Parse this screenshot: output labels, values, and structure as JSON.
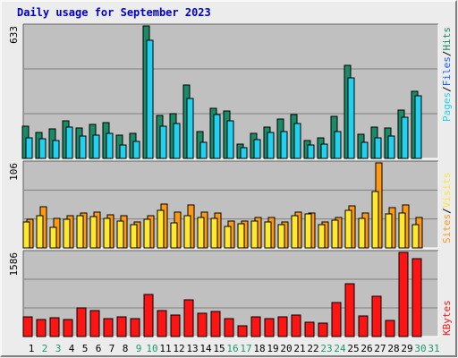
{
  "title": "Daily usage for September 2023",
  "colors": {
    "hits": "#1a8a67",
    "files": "#22d0f0",
    "pages": "#22d0f0",
    "visits": "#ff9914",
    "sites": "#ffe830",
    "kbytes": "#ff1414",
    "weekend_day": "#1a9a6a",
    "weekday": "#000000",
    "label_slash": "#000000",
    "hits_label": "#1a8a67",
    "files_label": "#1a60ff",
    "pages_label": "#22d0f0",
    "visits_label": "#ff9914",
    "sites_label": "#ffe830",
    "kbytes_label": "#ff1414",
    "panel_bg": "#c0c0c0"
  },
  "chart_data": [
    {
      "type": "bar",
      "name": "hits-files-pages",
      "categories": [
        "1",
        "2",
        "3",
        "4",
        "5",
        "6",
        "7",
        "8",
        "9",
        "10",
        "11",
        "12",
        "13",
        "14",
        "15",
        "16",
        "17",
        "18",
        "19",
        "20",
        "21",
        "22",
        "23",
        "24",
        "25",
        "26",
        "27",
        "28",
        "29",
        "30",
        "31"
      ],
      "max_label": "633",
      "ylim": [
        0,
        633
      ],
      "legend": [
        "Pages",
        "/",
        "Files",
        "/",
        "Hits"
      ],
      "series": [
        {
          "name": "Hits",
          "values": [
            155,
            123,
            143,
            180,
            145,
            163,
            172,
            112,
            118,
            633,
            205,
            215,
            350,
            130,
            240,
            225,
            70,
            120,
            150,
            190,
            210,
            85,
            100,
            200,
            445,
            115,
            150,
            145,
            230,
            320,
            0
          ]
        },
        {
          "name": "Files",
          "values": [
            100,
            95,
            85,
            150,
            108,
            110,
            120,
            65,
            80,
            565,
            155,
            168,
            287,
            75,
            210,
            180,
            50,
            90,
            125,
            130,
            165,
            65,
            70,
            130,
            385,
            75,
            100,
            105,
            195,
            300,
            0
          ]
        },
        {
          "name": "Pages",
          "values": [
            0,
            0,
            0,
            0,
            0,
            0,
            0,
            0,
            0,
            0,
            0,
            0,
            0,
            0,
            0,
            0,
            0,
            0,
            0,
            0,
            0,
            0,
            0,
            0,
            0,
            0,
            0,
            0,
            0,
            0,
            0
          ]
        }
      ]
    },
    {
      "type": "bar",
      "name": "visits-sites",
      "categories": [
        "1",
        "2",
        "3",
        "4",
        "5",
        "6",
        "7",
        "8",
        "9",
        "10",
        "11",
        "12",
        "13",
        "14",
        "15",
        "16",
        "17",
        "18",
        "19",
        "20",
        "21",
        "22",
        "23",
        "24",
        "25",
        "26",
        "27",
        "28",
        "29",
        "30",
        "31"
      ],
      "max_label": "106",
      "ylim": [
        0,
        106
      ],
      "legend": [
        "Sites",
        "/",
        "Visits"
      ],
      "series": [
        {
          "name": "Visits",
          "values": [
            36,
            51,
            37,
            40,
            44,
            45,
            41,
            40,
            32,
            40,
            55,
            45,
            53,
            45,
            43,
            33,
            34,
            38,
            38,
            32,
            45,
            44,
            32,
            38,
            52,
            44,
            106,
            50,
            53,
            38,
            0
          ]
        },
        {
          "name": "Sites",
          "values": [
            32,
            40,
            26,
            36,
            40,
            39,
            37,
            34,
            29,
            36,
            47,
            31,
            40,
            38,
            37,
            27,
            30,
            34,
            32,
            29,
            40,
            42,
            29,
            35,
            47,
            37,
            70,
            42,
            44,
            29,
            0
          ]
        }
      ]
    },
    {
      "type": "bar",
      "name": "kbytes",
      "categories": [
        "1",
        "2",
        "3",
        "4",
        "5",
        "6",
        "7",
        "8",
        "9",
        "10",
        "11",
        "12",
        "13",
        "14",
        "15",
        "16",
        "17",
        "18",
        "19",
        "20",
        "21",
        "22",
        "23",
        "24",
        "25",
        "26",
        "27",
        "28",
        "29",
        "30",
        "31"
      ],
      "max_label": "1586",
      "ylim": [
        0,
        1586
      ],
      "legend": [
        "KBytes"
      ],
      "series": [
        {
          "name": "KBytes",
          "values": [
            365,
            328,
            358,
            323,
            545,
            482,
            343,
            372,
            338,
            797,
            485,
            405,
            697,
            445,
            476,
            343,
            195,
            365,
            343,
            365,
            405,
            278,
            248,
            638,
            988,
            395,
            765,
            305,
            1586,
            1465,
            0
          ]
        }
      ]
    }
  ],
  "weekend_days": [
    2,
    3,
    9,
    10,
    16,
    17,
    23,
    24,
    30,
    31
  ]
}
